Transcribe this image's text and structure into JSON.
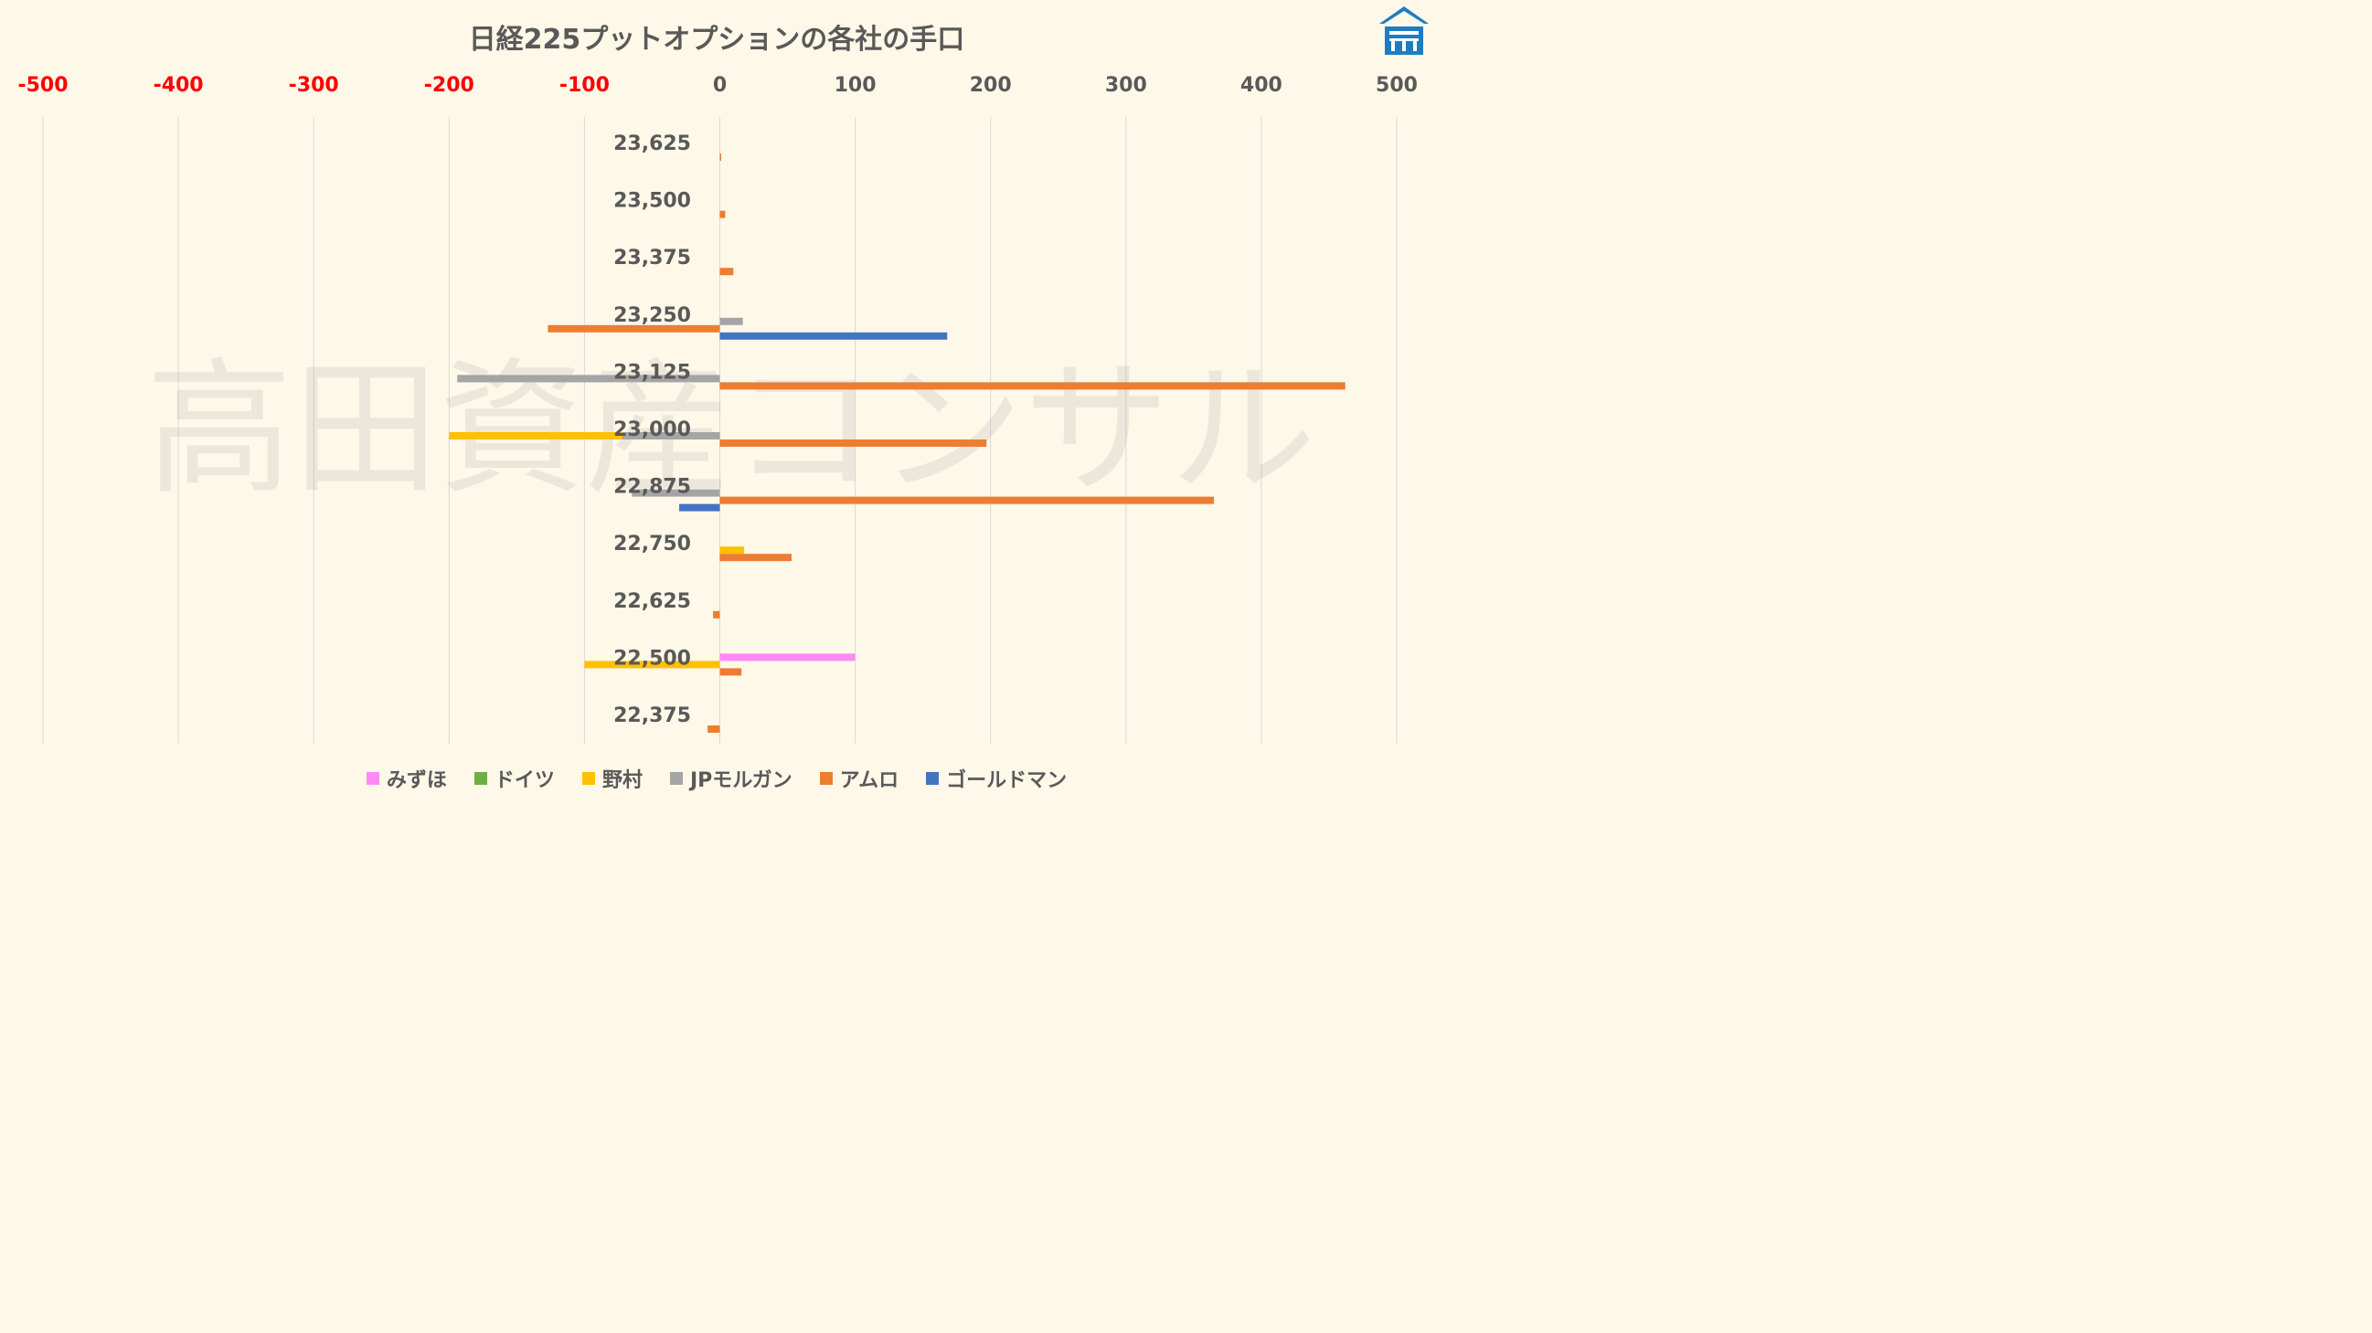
{
  "chart_data": {
    "type": "bar",
    "orientation": "horizontal",
    "title": "日経225プットオプションの各社の手口",
    "watermark": "高田資産コンサル",
    "categories": [
      "23,625",
      "23,500",
      "23,375",
      "23,250",
      "23,125",
      "23,000",
      "22,875",
      "22,750",
      "22,625",
      "22,500",
      "22,375"
    ],
    "xlim": [
      -500,
      500
    ],
    "x_ticks": [
      "-500",
      "-400",
      "-300",
      "-200",
      "-100",
      "0",
      "100",
      "200",
      "300",
      "400",
      "500"
    ],
    "x_axis_position": "top",
    "negative_tick_color": "#FF0000",
    "grid": true,
    "legend_position": "bottom",
    "series": [
      {
        "name": "みずほ",
        "color": "#FF89F4",
        "values": [
          0,
          0,
          0,
          0,
          0,
          0,
          0,
          0,
          0,
          100,
          0
        ]
      },
      {
        "name": "ドイツ",
        "color": "#70AD47",
        "values": [
          0,
          0,
          0,
          0,
          0,
          0,
          0,
          0,
          0,
          0,
          0
        ]
      },
      {
        "name": "野村",
        "color": "#FFC000",
        "values": [
          0,
          0,
          0,
          0,
          0,
          -200,
          0,
          18,
          0,
          -100,
          0
        ]
      },
      {
        "name": "JPモルガン",
        "color": "#A5A5A5",
        "values": [
          0,
          0,
          0,
          17,
          -194,
          -72,
          -65,
          0,
          0,
          0,
          0
        ]
      },
      {
        "name": "アムロ",
        "color": "#ED7D31",
        "values": [
          1,
          4,
          10,
          -127,
          462,
          197,
          365,
          53,
          -5,
          16,
          -9
        ]
      },
      {
        "name": "ゴールドマン",
        "color": "#4472C4",
        "values": [
          0,
          0,
          0,
          168,
          0,
          0,
          -30,
          0,
          0,
          0,
          0
        ]
      }
    ]
  }
}
